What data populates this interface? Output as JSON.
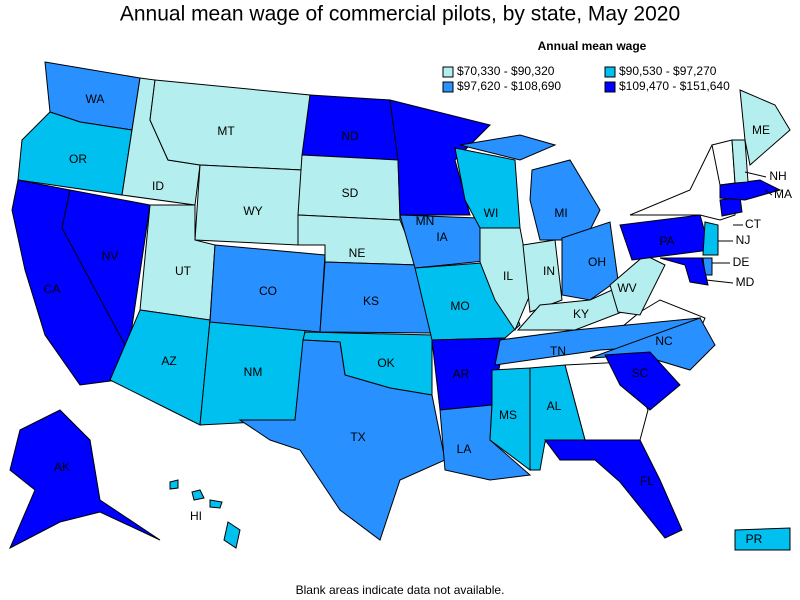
{
  "title": "Annual mean wage of commercial pilots, by state, May 2020",
  "legend": {
    "title": "Annual mean wage",
    "items": [
      {
        "label": "$70,330 - $90,320",
        "color": "#b4eeee",
        "states": [
          "MT",
          "ID",
          "WY",
          "SD",
          "NE",
          "UT",
          "IL",
          "IN",
          "KY",
          "WV",
          "ME",
          "NH"
        ]
      },
      {
        "label": "$90,530 - $97,270",
        "color": "#00c0f0",
        "states": [
          "OR",
          "AZ",
          "NM",
          "OK",
          "MO",
          "WI",
          "MS",
          "AL",
          "NJ",
          "HI",
          "PR"
        ]
      },
      {
        "label": "$97,620 - $108,690",
        "color": "#2890ff",
        "states": [
          "WA",
          "CO",
          "KS",
          "TX",
          "IA",
          "MI",
          "OH",
          "TN",
          "NC",
          "LA",
          "DE"
        ]
      },
      {
        "label": "$109,470 - $151,640",
        "color": "#0000ff",
        "states": [
          "CA",
          "NV",
          "ND",
          "MN",
          "AR",
          "SC",
          "FL",
          "AK",
          "PA",
          "MD",
          "CT",
          "MA"
        ]
      }
    ]
  },
  "footnote": "Blank areas indicate data not available."
}
